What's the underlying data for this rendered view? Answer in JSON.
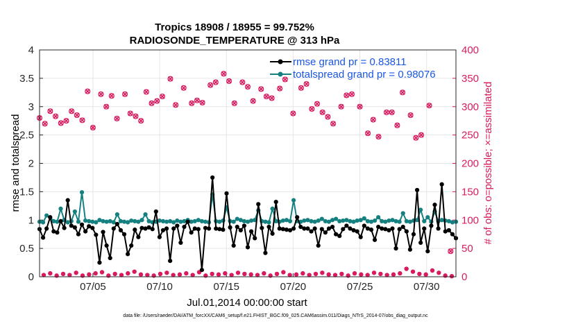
{
  "chart_data": {
    "type": "line",
    "title_line1": "Tropics 18908 / 18955 = 99.752%",
    "title_line2": "RADIOSONDE_TEMPERATURE @ 313 hPa",
    "xlabel": "Jul.01,2014 00:00:00 start",
    "ylabel_left": "rmse and totalspread",
    "ylabel_right": "# of obs: o=possible; ×=assimilated",
    "footnote": "data file: /Users/raeder/DAI/ATM_forcXX/CAM6_setup/f.e21.FHIST_BGC.f09_025.CAM6assim.011/Diags_NTrS_2014-07/obs_diag_output.nc",
    "xlim": [
      1.0,
      32.2
    ],
    "x_ticks": [
      5,
      10,
      15,
      20,
      25,
      30
    ],
    "x_tick_labels": [
      "07/05",
      "07/10",
      "07/15",
      "07/20",
      "07/25",
      "07/30"
    ],
    "ylim_left": [
      0,
      4
    ],
    "y_ticks_left": [
      "0",
      "0.5",
      "1",
      "1.5",
      "2",
      "2.5",
      "3",
      "3.5",
      "4"
    ],
    "ylim_right": [
      0,
      400
    ],
    "y_ticks_right": [
      "0",
      "50",
      "100",
      "150",
      "200",
      "250",
      "300",
      "350",
      "400"
    ],
    "colors": {
      "rmse": "#000000",
      "spread": "#148080",
      "obs": "#d81b60",
      "legend_text": "#1a55e6"
    },
    "series": [
      {
        "name": "rmse grand pr = 0.83811",
        "axis": "left",
        "values": [
          0.84,
          0.69,
          0.85,
          1.05,
          0.8,
          0.78,
          0.98,
          0.86,
          1.35,
          0.9,
          0.87,
          0.75,
          0.92,
          0.8,
          0.89,
          0.86,
          0.74,
          0.25,
          0.79,
          0.55,
          0.33,
          0.85,
          0.93,
          0.82,
          0.75,
          0.4,
          0.55,
          0.83,
          0.7,
          0.86,
          0.85,
          0.87,
          0.84,
          1.15,
          0.7,
          0.82,
          0.85,
          0.28,
          0.85,
          0.9,
          0.6,
          0.88,
          0.97,
          0.78,
          0.85,
          0.84,
          0.12,
          0.86,
          0.85,
          1.75,
          0.85,
          0.84,
          0.83,
          1.47,
          0.87,
          0.55,
          0.88,
          0.82,
          0.9,
          0.52,
          0.8,
          0.68,
          1.28,
          0.86,
          0.42,
          0.88,
          0.76,
          1.32,
          0.85,
          0.84,
          0.83,
          0.82,
          0.85,
          1.05,
          0.88,
          0.85,
          0.85,
          0.8,
          0.85,
          0.55,
          0.84,
          0.78,
          0.85,
          0.88,
          0.75,
          0.72,
          0.84,
          0.9,
          0.85,
          0.82,
          0.8,
          0.7,
          0.9,
          0.85,
          0.83,
          0.65,
          0.88,
          0.85,
          0.84,
          0.82,
          0.85,
          0.5,
          0.84,
          0.88,
          0.8,
          0.48,
          0.75,
          1.53,
          0.6,
          0.85,
          0.45,
          0.9,
          1.27,
          0.85,
          1.63,
          0.8,
          0.82,
          0.75,
          0.68
        ],
        "hidden_values_note": ""
      },
      {
        "name": "totalspread grand pr = 0.98076",
        "axis": "left",
        "values": [
          0.97,
          0.96,
          1.08,
          1.05,
          0.98,
          0.97,
          1.2,
          1.0,
          0.96,
          0.98,
          1.15,
          0.97,
          1.49,
          0.99,
          0.98,
          0.97,
          0.96,
          1.0,
          0.98,
          0.97,
          0.98,
          0.96,
          1.1,
          0.98,
          0.97,
          0.96,
          0.99,
          0.98,
          0.97,
          1.0,
          1.1,
          0.98,
          0.96,
          0.97,
          0.99,
          0.98,
          0.97,
          0.98,
          0.96,
          0.99,
          0.97,
          0.98,
          1.0,
          0.97,
          0.98,
          1.0,
          0.98,
          0.97,
          0.96,
          1.45,
          0.98,
          0.97,
          0.99,
          1.22,
          0.98,
          0.97,
          1.02,
          1.0,
          0.98,
          0.97,
          0.99,
          1.0,
          1.17,
          0.98,
          0.97,
          0.96,
          1.2,
          0.98,
          0.97,
          0.99,
          1.0,
          0.98,
          1.35,
          0.98,
          0.97,
          0.99,
          1.0,
          0.98,
          0.97,
          0.99,
          1.02,
          0.98,
          0.97,
          1.0,
          1.02,
          0.98,
          0.99,
          1.0,
          0.98,
          0.97,
          0.99,
          1.0,
          1.03,
          0.98,
          0.97,
          0.99,
          1.05,
          0.98,
          0.97,
          0.99,
          1.0,
          0.98,
          0.97,
          1.12,
          0.98,
          0.97,
          0.99,
          1.0,
          1.18,
          0.98,
          1.05,
          0.97,
          1.15,
          0.98,
          1.0,
          0.99,
          0.98,
          0.96,
          0.97
        ]
      },
      {
        "name": "possible obs",
        "axis": "right",
        "values": [
          280,
          270,
          292,
          283,
          271,
          275,
          292,
          285,
          276,
          327,
          263,
          322,
          300,
          319,
          279,
          322,
          288,
          283,
          275,
          326,
          306,
          310,
          318,
          349,
          303,
          333,
          306,
          311,
          307,
          338,
          343,
          358,
          345,
          306,
          343,
          335,
          310,
          331,
          318,
          315,
          332,
          348,
          288,
          333,
          340,
          296,
          305,
          290,
          282,
          270,
          300,
          320,
          322,
          300,
          253,
          277,
          247,
          290,
          290,
          267,
          325,
          285,
          245,
          250,
          302,
          45
        ],
        "x": [
          1.0,
          1.4,
          1.8,
          2.2,
          2.6,
          3.0,
          3.4,
          3.8,
          4.2,
          4.6,
          5.0,
          5.6,
          6.0,
          6.4,
          6.8,
          7.4,
          7.8,
          8.2,
          8.6,
          9.0,
          9.4,
          9.8,
          10.2,
          10.8,
          11.2,
          11.8,
          12.4,
          12.8,
          13.2,
          13.8,
          14.2,
          14.8,
          15.2,
          15.6,
          16.2,
          16.6,
          17.0,
          17.6,
          18.0,
          18.4,
          19.0,
          19.4,
          20.0,
          20.6,
          21.0,
          21.4,
          21.8,
          22.2,
          22.6,
          23.0,
          23.6,
          24.0,
          24.4,
          25.0,
          25.6,
          26.0,
          26.4,
          27.0,
          27.4,
          27.8,
          28.2,
          28.8,
          29.2,
          29.6,
          30.2,
          31.8
        ]
      }
    ]
  }
}
